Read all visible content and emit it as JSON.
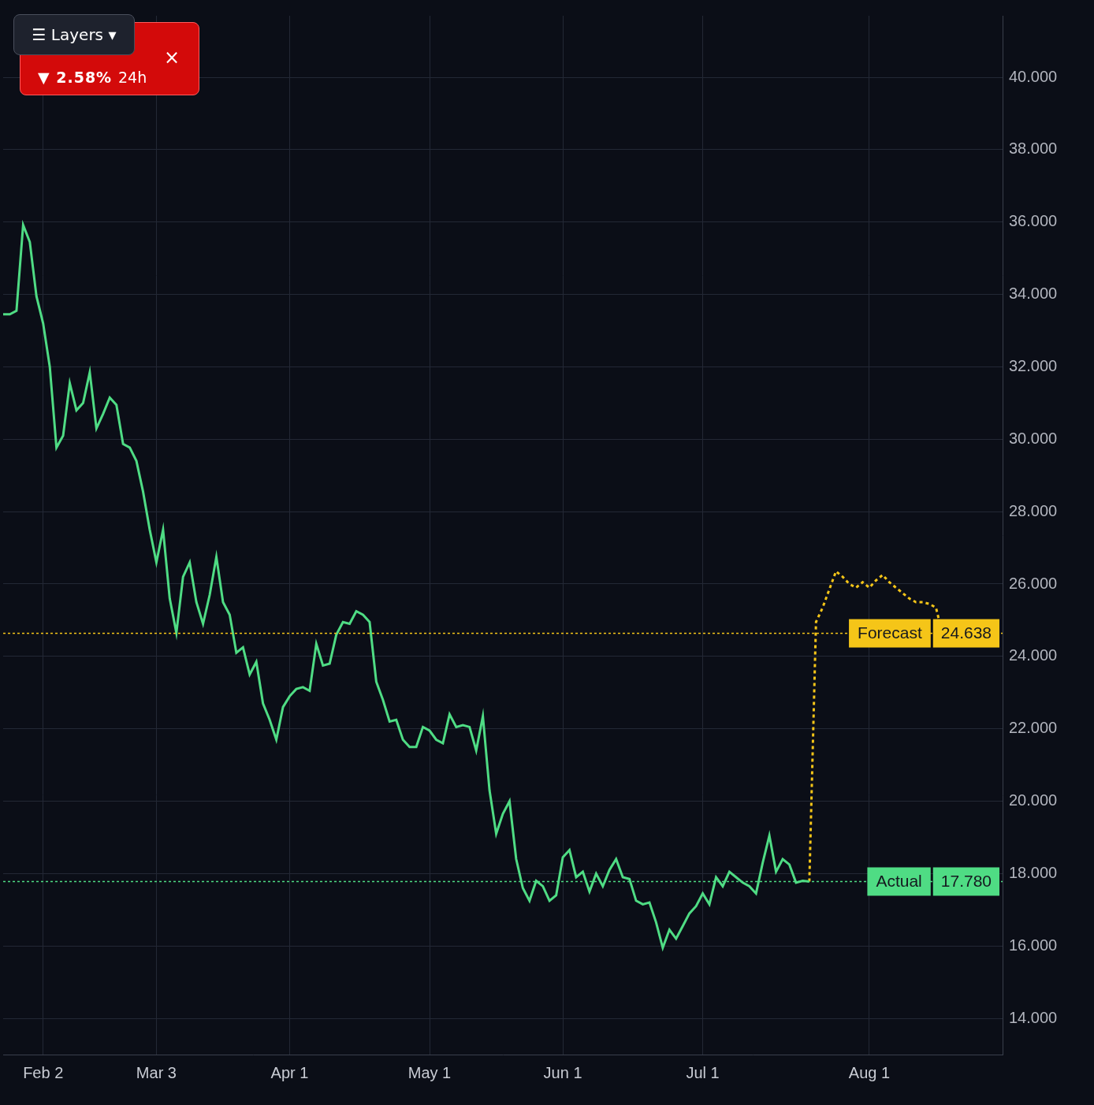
{
  "chart_data": {
    "type": "line",
    "grid": true,
    "categories": [
      null,
      null,
      null,
      null,
      null,
      null,
      "Feb 2",
      null,
      null,
      null,
      null,
      null,
      null,
      null,
      null,
      null,
      null,
      null,
      null,
      null,
      null,
      null,
      null,
      "Mar 3",
      null,
      null,
      null,
      null,
      null,
      null,
      null,
      null,
      null,
      null,
      null,
      null,
      null,
      null,
      null,
      null,
      null,
      null,
      null,
      "Apr 1",
      null,
      null,
      null,
      null,
      null,
      null,
      null,
      null,
      null,
      null,
      null,
      null,
      null,
      null,
      null,
      null,
      null,
      null,
      null,
      null,
      "May 1",
      null,
      null,
      null,
      null,
      null,
      null,
      null,
      null,
      null,
      null,
      null,
      null,
      null,
      null,
      null,
      null,
      null,
      null,
      null,
      "Jun 1",
      null,
      null,
      null,
      null,
      null,
      null,
      null,
      null,
      null,
      null,
      null,
      null,
      null,
      null,
      null,
      null,
      null,
      null,
      null,
      null,
      "Jul 1",
      null,
      null,
      null,
      null,
      null,
      null,
      null,
      null,
      null,
      null,
      null,
      null,
      null,
      null,
      null,
      null,
      null,
      null,
      null,
      null,
      null,
      null,
      null,
      null,
      "Aug 1",
      null,
      null,
      null,
      null,
      null,
      null,
      null,
      null,
      null,
      null,
      null,
      null,
      null,
      null,
      null,
      null,
      null,
      null,
      null,
      null
    ],
    "series": [
      {
        "color": "#4fdc84",
        "line_style": "solid",
        "marker": "none",
        "values": [
          33.45,
          33.45,
          33.55,
          35.92,
          35.45,
          33.95,
          33.2,
          32.0,
          29.77,
          30.1,
          31.55,
          30.8,
          31.0,
          31.85,
          30.3,
          30.7,
          31.15,
          30.95,
          29.87,
          29.77,
          29.4,
          28.55,
          27.5,
          26.6,
          27.5,
          25.6,
          24.65,
          26.2,
          26.6,
          25.5,
          24.9,
          25.7,
          26.75,
          25.5,
          25.15,
          24.1,
          24.25,
          23.5,
          23.85,
          22.7,
          22.25,
          21.7,
          22.6,
          22.9,
          23.1,
          23.15,
          23.05,
          24.35,
          23.75,
          23.8,
          24.6,
          24.95,
          24.9,
          25.25,
          25.15,
          24.95,
          23.3,
          22.8,
          22.2,
          22.25,
          21.7,
          21.5,
          21.5,
          22.05,
          21.95,
          21.7,
          21.6,
          22.4,
          22.05,
          22.1,
          22.05,
          21.4,
          22.35,
          20.3,
          19.1,
          19.65,
          20.0,
          18.4,
          17.6,
          17.25,
          17.8,
          17.65,
          17.25,
          17.4,
          18.45,
          18.65,
          17.9,
          18.05,
          17.5,
          18.0,
          17.65,
          18.1,
          18.4,
          17.9,
          17.85,
          17.25,
          17.15,
          17.2,
          16.65,
          15.95,
          16.45,
          16.2,
          16.55,
          16.9,
          17.1,
          17.45,
          17.15,
          17.9,
          17.65,
          18.05,
          17.9,
          17.75,
          17.65,
          17.45,
          18.3,
          19.05,
          18.05,
          18.4,
          18.25,
          17.75,
          17.8,
          17.78,
          null,
          null,
          null,
          null,
          null,
          null,
          null,
          null,
          null,
          null,
          null,
          null,
          null,
          null,
          null,
          null,
          null,
          null,
          null,
          null,
          null,
          null,
          null,
          null,
          null,
          null,
          null,
          null,
          null
        ]
      },
      {
        "color": "#f5c518",
        "line_style": "dotted",
        "marker": "none",
        "values": [
          null,
          null,
          null,
          null,
          null,
          null,
          null,
          null,
          null,
          null,
          null,
          null,
          null,
          null,
          null,
          null,
          null,
          null,
          null,
          null,
          null,
          null,
          null,
          null,
          null,
          null,
          null,
          null,
          null,
          null,
          null,
          null,
          null,
          null,
          null,
          null,
          null,
          null,
          null,
          null,
          null,
          null,
          null,
          null,
          null,
          null,
          null,
          null,
          null,
          null,
          null,
          null,
          null,
          null,
          null,
          null,
          null,
          null,
          null,
          null,
          null,
          null,
          null,
          null,
          null,
          null,
          null,
          null,
          null,
          null,
          null,
          null,
          null,
          null,
          null,
          null,
          null,
          null,
          null,
          null,
          null,
          null,
          null,
          null,
          null,
          null,
          null,
          null,
          null,
          null,
          null,
          null,
          null,
          null,
          null,
          null,
          null,
          null,
          null,
          null,
          null,
          null,
          null,
          null,
          null,
          null,
          null,
          null,
          null,
          null,
          null,
          null,
          null,
          null,
          null,
          null,
          null,
          null,
          null,
          null,
          null,
          17.78,
          24.95,
          25.35,
          25.85,
          26.35,
          26.2,
          26.0,
          25.9,
          26.05,
          25.9,
          26.1,
          26.25,
          26.05,
          25.9,
          25.75,
          25.6,
          25.5,
          25.5,
          25.45,
          25.35,
          24.6,
          null,
          null,
          null,
          null,
          null,
          null,
          null,
          null,
          null
        ]
      }
    ],
    "ylim": [
      13,
      41.7
    ],
    "yticks": [
      {
        "value": 14,
        "label": "14.000"
      },
      {
        "value": 16,
        "label": "16.000"
      },
      {
        "value": 18,
        "label": "18.000"
      },
      {
        "value": 20,
        "label": "20.000"
      },
      {
        "value": 22,
        "label": "22.000"
      },
      {
        "value": 24,
        "label": "24.000"
      },
      {
        "value": 26,
        "label": "26.000"
      },
      {
        "value": 28,
        "label": "28.000"
      },
      {
        "value": 30,
        "label": "30.000"
      },
      {
        "value": 32,
        "label": "32.000"
      },
      {
        "value": 34,
        "label": "34.000"
      },
      {
        "value": 36,
        "label": "36.000"
      },
      {
        "value": 38,
        "label": "38.000"
      },
      {
        "value": 40,
        "label": "40.000"
      }
    ],
    "annotations": [
      {
        "text": "Forecast",
        "value": 24.638,
        "value_label": "24.638",
        "color": "#f5c518"
      },
      {
        "text": "Actual",
        "value": 17.78,
        "value_label": "17.780",
        "color": "#4fdc84"
      }
    ]
  },
  "overlay": {
    "menu": "☰ Layers ▾",
    "change": "▼ 2.58%",
    "period": "24h",
    "close": "×"
  }
}
